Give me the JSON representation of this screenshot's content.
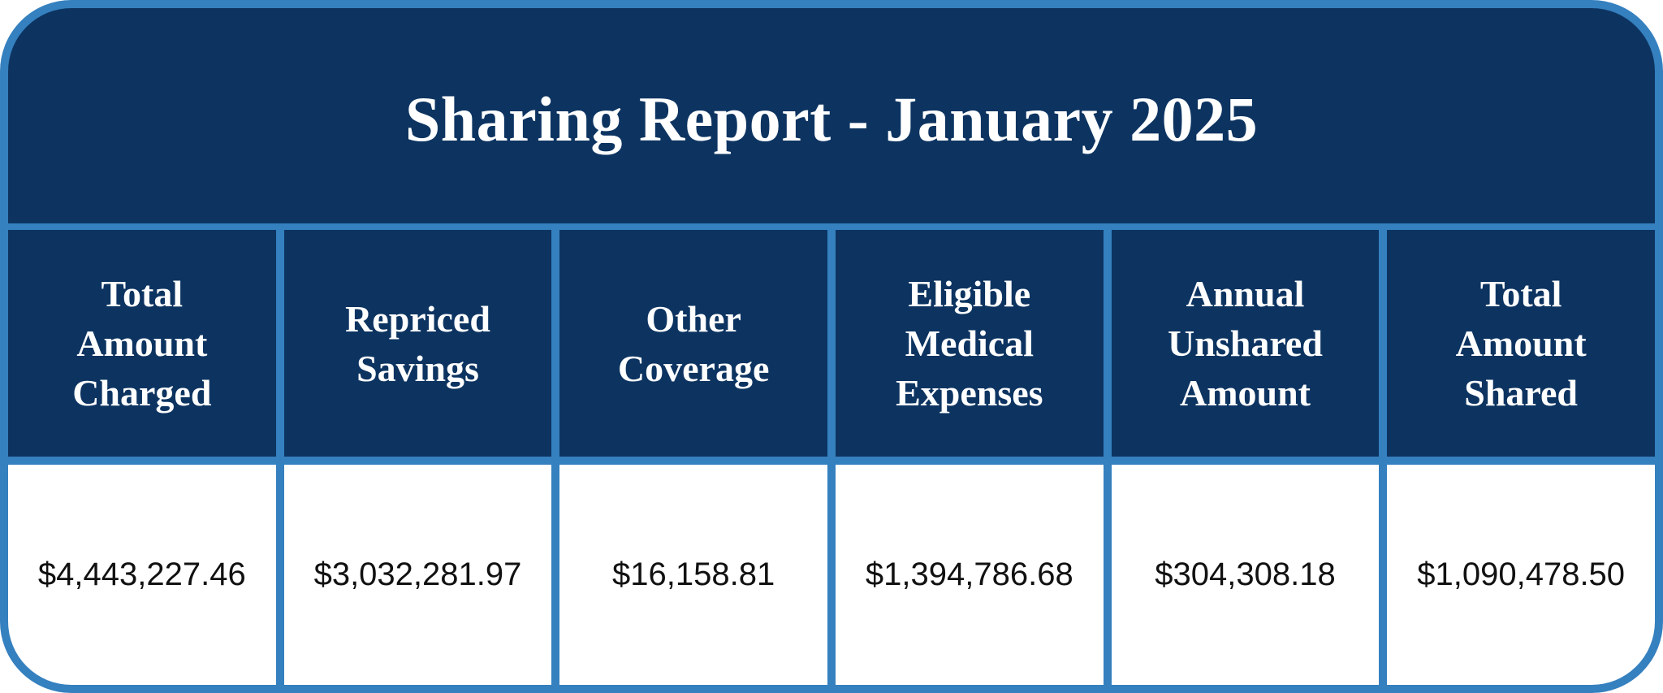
{
  "title": "Sharing Report - January 2025",
  "columns": [
    {
      "header": "Total Amount Charged",
      "value": "$4,443,227.46"
    },
    {
      "header": "Repriced Savings",
      "value": "$3,032,281.97"
    },
    {
      "header": "Other Coverage",
      "value": "$16,158.81"
    },
    {
      "header": "Eligible Medical Expenses",
      "value": "$1,394,786.68"
    },
    {
      "header": "Annual Unshared Amount",
      "value": "$304,308.18"
    },
    {
      "header": "Total Amount Shared",
      "value": "$1,090,478.50"
    }
  ],
  "colors": {
    "header_bg": "#0D3461",
    "border": "#3580BF",
    "cell_bg": "#FFFFFF",
    "header_text": "#FFFFFF",
    "value_text": "#111111"
  }
}
